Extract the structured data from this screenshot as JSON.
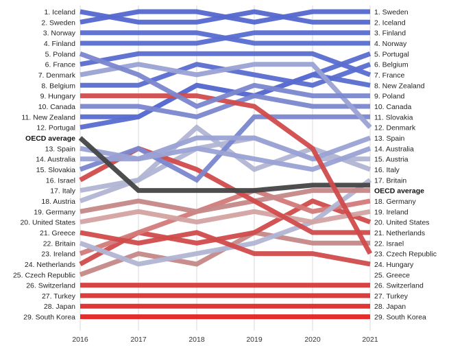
{
  "chart_data": {
    "type": "line",
    "subtype": "bump-chart",
    "x": [
      "2016",
      "2017",
      "2018",
      "2019",
      "2020",
      "2021"
    ],
    "y_axis": "rank (1 = top)",
    "grid": "vertical lines at each year",
    "series": [
      {
        "name": "Iceland",
        "ranks": [
          1,
          2,
          2,
          1,
          2,
          2
        ],
        "color": "#5468cf"
      },
      {
        "name": "Sweden",
        "ranks": [
          2,
          1,
          1,
          2,
          1,
          1
        ],
        "color": "#5468cf"
      },
      {
        "name": "Norway",
        "ranks": [
          3,
          3,
          3,
          4,
          4,
          4
        ],
        "color": "#5a6dd0"
      },
      {
        "name": "Finland",
        "ranks": [
          4,
          4,
          4,
          3,
          3,
          3
        ],
        "color": "#5a6dd0"
      },
      {
        "name": "Poland",
        "ranks": [
          5,
          7,
          10,
          8,
          9,
          9
        ],
        "color": "#7b87cf"
      },
      {
        "name": "France",
        "ranks": [
          6,
          5,
          5,
          5,
          5,
          7
        ],
        "color": "#5a6dd0"
      },
      {
        "name": "Denmark",
        "ranks": [
          7,
          6,
          7,
          6,
          6,
          12
        ],
        "color": "#9aa2d4"
      },
      {
        "name": "Belgium",
        "ranks": [
          8,
          8,
          6,
          7,
          8,
          6
        ],
        "color": "#5a6dd0"
      },
      {
        "name": "Hungary",
        "ranks": [
          9,
          9,
          9,
          10,
          14,
          24
        ],
        "color": "#d14b4b"
      },
      {
        "name": "Canada",
        "ranks": [
          10,
          10,
          11,
          9,
          10,
          10
        ],
        "color": "#7b87cf"
      },
      {
        "name": "New Zealand",
        "ranks": [
          11,
          11,
          8,
          9,
          7,
          8
        ],
        "color": "#5a6dd0"
      },
      {
        "name": "Portugal",
        "ranks": [
          12,
          11,
          8,
          9,
          7,
          5
        ],
        "color": "#5a6dd0"
      },
      {
        "name": "OECD average",
        "ranks": [
          13,
          18,
          18,
          18,
          17.5,
          17.5
        ],
        "color": "#444444"
      },
      {
        "name": "Spain",
        "ranks": [
          14,
          15,
          13,
          13,
          15,
          13
        ],
        "color": "#9aa2d4"
      },
      {
        "name": "Australia",
        "ranks": [
          15,
          15,
          14,
          15,
          16,
          14
        ],
        "color": "#9aa2d4"
      },
      {
        "name": "Slovakia",
        "ranks": [
          16,
          14,
          17,
          11,
          11,
          11
        ],
        "color": "#7b87cf"
      },
      {
        "name": "Israel",
        "ranks": [
          17,
          14,
          16,
          19,
          22,
          22
        ],
        "color": "#d14b4b"
      },
      {
        "name": "Italy",
        "ranks": [
          18,
          17,
          12,
          16,
          14,
          16
        ],
        "color": "#b1b5d4"
      },
      {
        "name": "Austria",
        "ranks": [
          19,
          17,
          14,
          13,
          15,
          15
        ],
        "color": "#b1b5d4"
      },
      {
        "name": "Germany",
        "ranks": [
          20,
          19,
          20,
          19,
          18,
          18
        ],
        "color": "#c58888"
      },
      {
        "name": "United States",
        "ranks": [
          21,
          20,
          21,
          20,
          21,
          20
        ],
        "color": "#d4a2a2"
      },
      {
        "name": "Greece",
        "ranks": [
          22,
          23,
          22,
          24,
          24,
          25
        ],
        "color": "#d14b4b"
      },
      {
        "name": "Britain",
        "ranks": [
          23,
          25,
          24,
          23,
          21,
          17
        ],
        "color": "#b1b5d4"
      },
      {
        "name": "Ireland",
        "ranks": [
          24,
          22,
          20,
          18,
          20,
          19
        ],
        "color": "#d47a7a"
      },
      {
        "name": "Netherlands",
        "ranks": [
          25,
          22,
          23,
          22,
          19,
          21
        ],
        "color": "#d14b4b"
      },
      {
        "name": "Czech Republic",
        "ranks": [
          26,
          24,
          25,
          22,
          23,
          23
        ],
        "color": "#c58888"
      },
      {
        "name": "Switzerland",
        "ranks": [
          27,
          27,
          27,
          27,
          27,
          27
        ],
        "color": "#d63a3a"
      },
      {
        "name": "Turkey",
        "ranks": [
          28,
          28,
          28,
          28,
          28,
          28
        ],
        "color": "#d93232"
      },
      {
        "name": "Japan",
        "ranks": [
          29,
          29,
          29,
          29,
          29,
          29
        ],
        "color": "#de2a2a"
      },
      {
        "name": "South Korea",
        "ranks": [
          30,
          30,
          30,
          30,
          30,
          30
        ],
        "color": "#e32222"
      }
    ],
    "left_labels": [
      "1. Iceland",
      "2. Sweden",
      "3. Norway",
      "4. Finland",
      "5. Poland",
      "6. France",
      "7. Denmark",
      "8. Belgium",
      "9. Hungary",
      "10. Canada",
      "11. New Zealand",
      "12. Portugal",
      "OECD average",
      "13. Spain",
      "14. Australia",
      "15. Slovakia",
      "16. Israel",
      "17. Italy",
      "18. Austria",
      "19. Germany",
      "20. United States",
      "21. Greece",
      "22. Britain",
      "23. Ireland",
      "24. Netherlands",
      "25. Czech Republic",
      "26. Switzerland",
      "27. Turkey",
      "28. Japan",
      "29. South Korea"
    ],
    "right_labels": [
      "1. Sweden",
      "2. Iceland",
      "3. Finland",
      "4. Norway",
      "5. Portugal",
      "6. Belgium",
      "7. France",
      "8. New Zealand",
      "9. Poland",
      "10. Canada",
      "11. Slovakia",
      "12. Denmark",
      "13. Spain",
      "14. Australia",
      "15. Austria",
      "16. Italy",
      "17. Britain",
      "OECD average",
      "18. Germany",
      "19. Ireland",
      "20. United States",
      "21. Netherlands",
      "22. Israel",
      "23. Czech Republic",
      "24. Hungary",
      "25. Greece",
      "26. Switzerland",
      "27. Turkey",
      "28. Japan",
      "29. South Korea"
    ],
    "bold_label": "OECD average"
  }
}
